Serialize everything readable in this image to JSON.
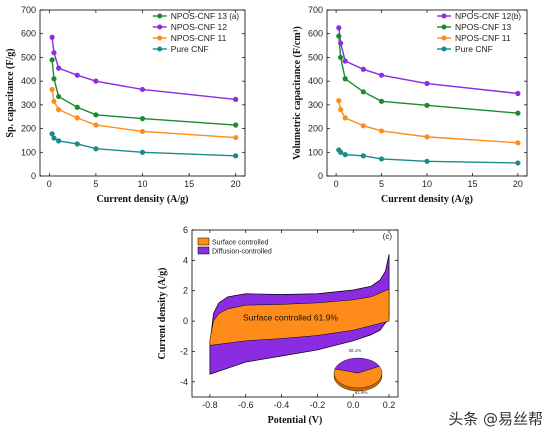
{
  "watermark": "头条 @易丝帮",
  "colors": {
    "cnf13": "#1a8a2e",
    "cnf12": "#8b2be2",
    "cnf11": "#ff8c1a",
    "pure": "#1a8a8a"
  },
  "chart_data": [
    {
      "type": "line",
      "panel": "(a)",
      "xlabel": "Current density (A/g)",
      "ylabel": "Sp. capacitance (F/g)",
      "xlim": [
        -1,
        21
      ],
      "ylim": [
        0,
        700
      ],
      "xticks": [
        0,
        5,
        10,
        15,
        20
      ],
      "yticks": [
        0,
        100,
        200,
        300,
        400,
        500,
        600,
        700
      ],
      "legend_position": "top-right",
      "series": [
        {
          "name": "NPOS-CNF 13",
          "color_key": "cnf13",
          "marker": "circle",
          "x": [
            0.3,
            0.5,
            1,
            3,
            5,
            10,
            20
          ],
          "y": [
            490,
            410,
            335,
            290,
            258,
            242,
            215
          ]
        },
        {
          "name": "NPOS-CNF 12",
          "color_key": "cnf12",
          "marker": "circle",
          "x": [
            0.3,
            0.5,
            1,
            3,
            5,
            10,
            20
          ],
          "y": [
            585,
            520,
            455,
            425,
            400,
            365,
            323
          ]
        },
        {
          "name": "NPOS-CNF 11",
          "color_key": "cnf11",
          "marker": "circle",
          "x": [
            0.3,
            0.5,
            1,
            3,
            5,
            10,
            20
          ],
          "y": [
            365,
            315,
            280,
            245,
            215,
            188,
            162
          ]
        },
        {
          "name": "Pure CNF",
          "color_key": "pure",
          "marker": "circle",
          "x": [
            0.3,
            0.5,
            1,
            3,
            5,
            10,
            20
          ],
          "y": [
            178,
            160,
            148,
            135,
            115,
            100,
            85
          ]
        }
      ]
    },
    {
      "type": "line",
      "panel": "(b)",
      "xlabel": "Current density (A/g)",
      "ylabel": "Volumetric capacitance (F/cm³)",
      "xlim": [
        -1,
        21
      ],
      "ylim": [
        0,
        700
      ],
      "xticks": [
        0,
        5,
        10,
        15,
        20
      ],
      "yticks": [
        0,
        100,
        200,
        300,
        400,
        500,
        600,
        700
      ],
      "legend_position": "top-right",
      "series": [
        {
          "name": "NPOS-CNF 12",
          "color_key": "cnf12",
          "marker": "circle",
          "x": [
            0.3,
            0.5,
            1,
            3,
            5,
            10,
            20
          ],
          "y": [
            625,
            560,
            485,
            450,
            425,
            390,
            348
          ]
        },
        {
          "name": "NPOS-CNF 13",
          "color_key": "cnf13",
          "marker": "circle",
          "x": [
            0.3,
            0.5,
            1,
            3,
            5,
            10,
            20
          ],
          "y": [
            590,
            500,
            410,
            355,
            315,
            298,
            265
          ]
        },
        {
          "name": "NPOS-CNF 11",
          "color_key": "cnf11",
          "marker": "circle",
          "x": [
            0.3,
            0.5,
            1,
            3,
            5,
            10,
            20
          ],
          "y": [
            318,
            280,
            245,
            212,
            190,
            165,
            140
          ]
        },
        {
          "name": "Pure CNF",
          "color_key": "pure",
          "marker": "circle",
          "x": [
            0.3,
            0.5,
            1,
            3,
            5,
            10,
            20
          ],
          "y": [
            110,
            100,
            90,
            85,
            72,
            62,
            55
          ]
        }
      ]
    },
    {
      "type": "area",
      "panel": "(c)",
      "xlabel": "Potential (V)",
      "ylabel": "Current density (A/g)",
      "xlim": [
        -0.9,
        0.25
      ],
      "ylim": [
        -5,
        6
      ],
      "xticks": [
        -0.8,
        -0.6,
        -0.4,
        -0.2,
        0.0,
        0.2
      ],
      "xtick_labels": [
        "-0.8",
        "-0.6",
        "-0.4",
        "-0.2",
        "0.0",
        "0.2"
      ],
      "yticks": [
        -4,
        -2,
        0,
        2,
        4,
        6
      ],
      "legend_position": "top-left",
      "legend": [
        {
          "name": "Surface controlled",
          "color_key": "cnf11"
        },
        {
          "name": "Diffusion-controlled",
          "color_key": "cnf12"
        }
      ],
      "annotation": "Surface controlled 61.9%",
      "pie": {
        "slices": [
          {
            "label": "61.9%",
            "value": 61.9,
            "color_key": "cnf11"
          },
          {
            "label": "38.1%",
            "value": 38.1,
            "color_key": "cnf12"
          }
        ]
      },
      "total_cv": {
        "upper": {
          "x": [
            -0.8,
            -0.78,
            -0.75,
            -0.7,
            -0.6,
            -0.4,
            -0.2,
            0.0,
            0.1,
            0.15,
            0.18,
            0.2
          ],
          "y": [
            -1.5,
            0.5,
            1.2,
            1.6,
            1.8,
            1.75,
            1.8,
            2.05,
            2.3,
            2.7,
            3.3,
            4.4
          ]
        },
        "lower": {
          "x": [
            -0.8,
            -0.7,
            -0.6,
            -0.4,
            -0.2,
            0.0,
            0.1,
            0.15,
            0.2
          ],
          "y": [
            -3.5,
            -3.1,
            -2.7,
            -2.3,
            -1.9,
            -1.3,
            -0.9,
            -0.6,
            0.2
          ]
        }
      },
      "surface_cv": {
        "upper": {
          "x": [
            -0.8,
            -0.78,
            -0.75,
            -0.7,
            -0.6,
            -0.4,
            -0.2,
            0.0,
            0.1,
            0.2
          ],
          "y": [
            -1.2,
            0.0,
            0.5,
            0.8,
            1.05,
            1.1,
            1.2,
            1.4,
            1.6,
            2.1
          ]
        },
        "lower": {
          "x": [
            -0.8,
            -0.7,
            -0.6,
            -0.4,
            -0.2,
            0.0,
            0.1,
            0.2
          ],
          "y": [
            -1.6,
            -1.45,
            -1.3,
            -1.15,
            -0.95,
            -0.6,
            -0.3,
            0.0
          ]
        }
      }
    }
  ]
}
